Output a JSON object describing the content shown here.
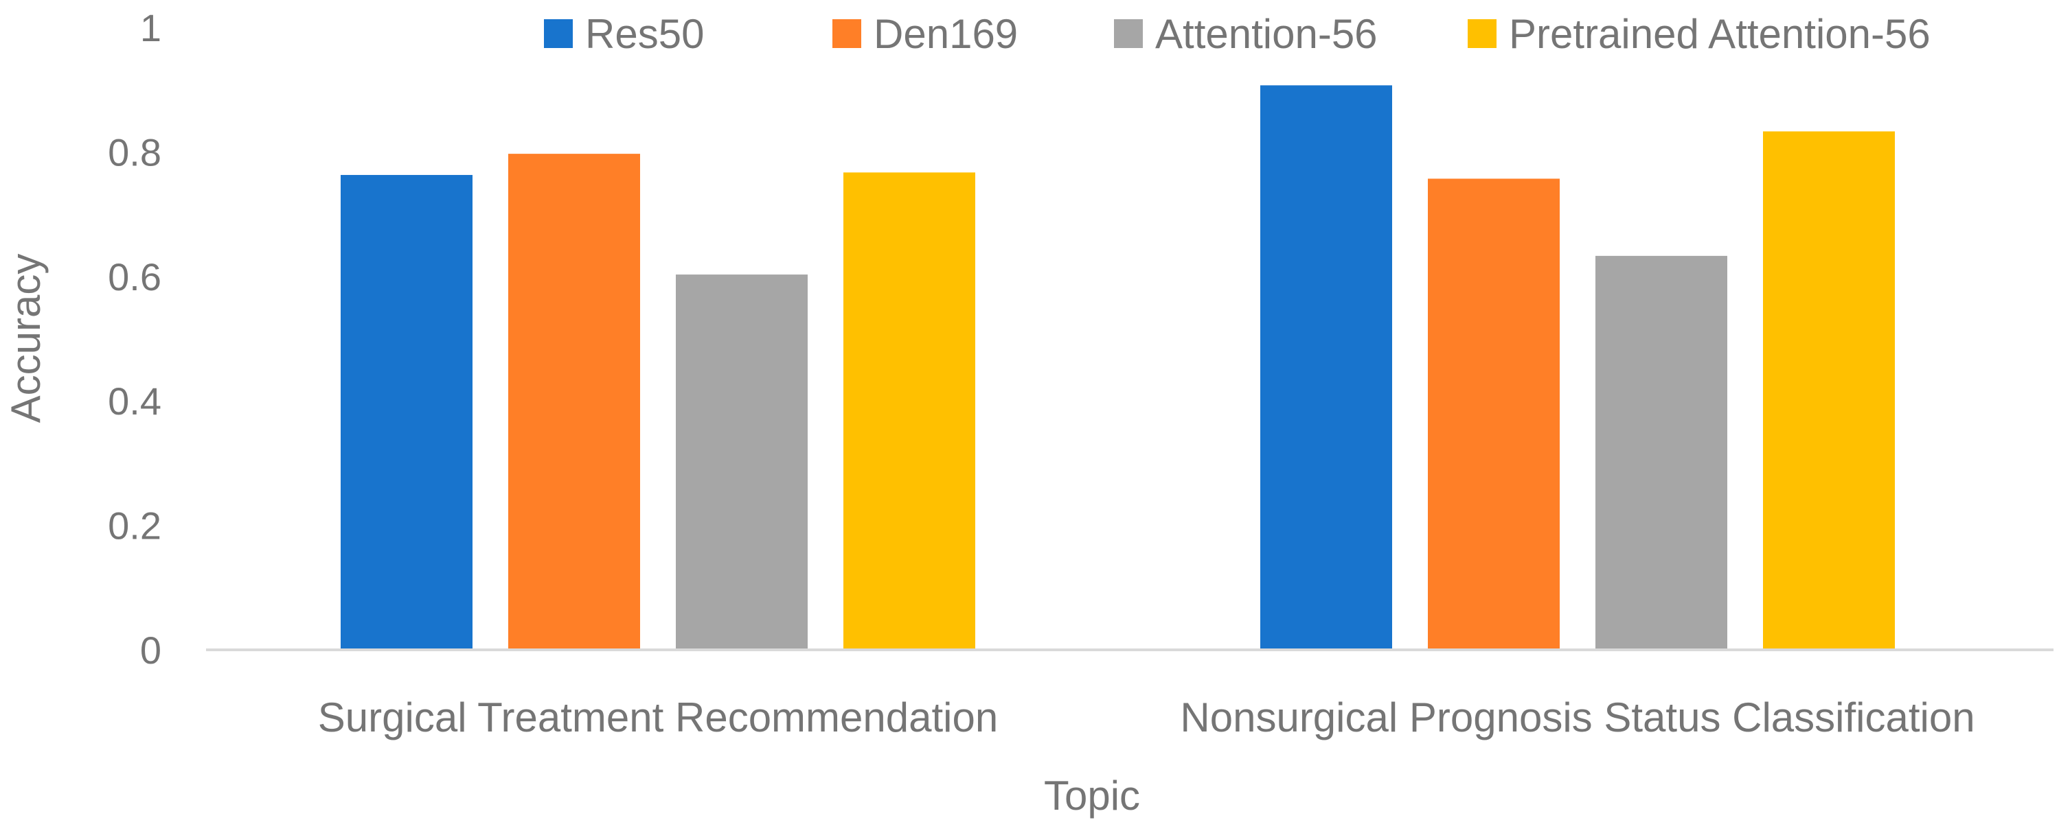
{
  "chart_data": {
    "type": "bar",
    "title": "",
    "xlabel": "Topic",
    "ylabel": "Accuracy",
    "categories": [
      "Surgical Treatment Recommendation",
      "Nonsurgical Prognosis Status Classification"
    ],
    "series": [
      {
        "name": "Res50",
        "color": "#1874CD",
        "values": [
          0.763,
          0.907
        ]
      },
      {
        "name": "Den169",
        "color": "#FF7F27",
        "values": [
          0.797,
          0.757
        ]
      },
      {
        "name": "Attention-56",
        "color": "#A6A6A6",
        "values": [
          0.603,
          0.633
        ]
      },
      {
        "name": "Pretrained Attention-56",
        "color": "#FFC000",
        "values": [
          0.767,
          0.833
        ]
      }
    ],
    "yticks": [
      "0",
      "0.2",
      "0.4",
      "0.6",
      "0.8",
      "1"
    ],
    "ylim": [
      0,
      1
    ],
    "grid": false,
    "legend_position": "top-right"
  }
}
